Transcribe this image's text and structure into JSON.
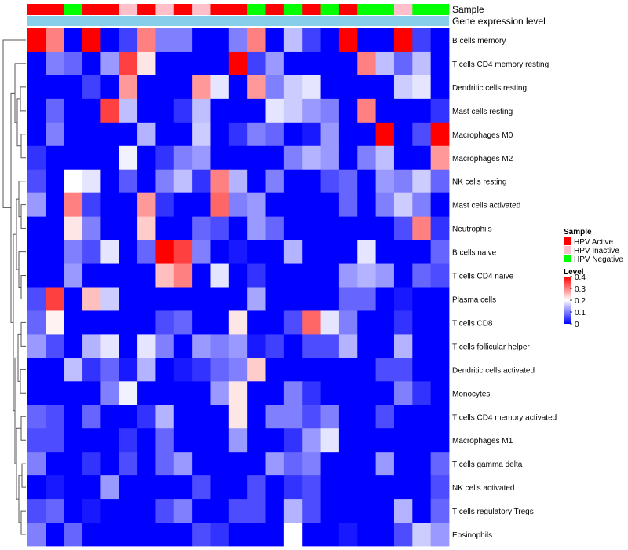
{
  "chart_data": {
    "type": "heatmap",
    "annotation_labels": {
      "sample": "Sample",
      "gene": "Gene expression level"
    },
    "legend": {
      "sample_title": "Sample",
      "sample_entries": [
        {
          "label": "HPV Active",
          "color": "#ff0000"
        },
        {
          "label": "HPV Inactive",
          "color": "#ffc0cb"
        },
        {
          "label": "HPV Negative",
          "color": "#00ff00"
        }
      ],
      "level_title": "Level",
      "level_ticks": [
        "0.4",
        "0.3",
        "0.2",
        "0.1",
        "0"
      ],
      "level_tick_values": [
        0.4,
        0.3,
        0.2,
        0.1,
        0
      ]
    },
    "color_scale": {
      "low": "#0000ff",
      "mid": "#ffffff",
      "high": "#ff0000",
      "min": 0,
      "mid_value": 0.2,
      "max": 0.4
    },
    "gene_bar_color": "#87ceeb",
    "sample_colors": [
      "#ff0000",
      "#ff0000",
      "#00ff00",
      "#ff0000",
      "#ff0000",
      "#ffc0cb",
      "#ff0000",
      "#ffc0cb",
      "#ff0000",
      "#ffc0cb",
      "#ff0000",
      "#ff0000",
      "#00ff00",
      "#ff0000",
      "#00ff00",
      "#ff0000",
      "#00ff00",
      "#ff0000",
      "#00ff00",
      "#00ff00",
      "#ffc0cb",
      "#00ff00",
      "#00ff00"
    ],
    "rows": [
      "B cells memory",
      "T cells CD4 memory resting",
      "Dendritic cells resting",
      "Mast cells resting",
      "Macrophages M0",
      "Macrophages M2",
      "NK cells resting",
      "Mast cells activated",
      "Neutrophils",
      "B cells naive",
      "T cells CD4 naive",
      "Plasma cells",
      "T cells CD8",
      "T cells follicular helper",
      "Dendritic cells activated",
      "Monocytes",
      "T cells CD4 memory activated",
      "Macrophages M1",
      "T cells gamma delta",
      "NK cells activated",
      "T cells regulatory  Tregs",
      "Eosinophils"
    ],
    "values": [
      [
        0.4,
        0.3,
        0.0,
        0.4,
        0.0,
        0.05,
        0.3,
        0.1,
        0.1,
        0.0,
        0.0,
        0.1,
        0.3,
        0.0,
        0.15,
        0.05,
        0.0,
        0.4,
        0.0,
        0.0,
        0.4,
        0.05,
        0.0
      ],
      [
        0.0,
        0.1,
        0.08,
        0.0,
        0.12,
        0.35,
        0.22,
        0.0,
        0.0,
        0.0,
        0.0,
        0.4,
        0.05,
        0.12,
        0.0,
        0.0,
        0.0,
        0.0,
        0.3,
        0.15,
        0.08,
        0.15,
        0.0
      ],
      [
        0.0,
        0.0,
        0.0,
        0.05,
        0.0,
        0.28,
        0.0,
        0.0,
        0.0,
        0.28,
        0.18,
        0.0,
        0.28,
        0.1,
        0.16,
        0.18,
        0.0,
        0.0,
        0.0,
        0.0,
        0.16,
        0.18,
        0.0
      ],
      [
        0.0,
        0.08,
        0.0,
        0.0,
        0.35,
        0.15,
        0.0,
        0.0,
        0.04,
        0.15,
        0.0,
        0.0,
        0.0,
        0.18,
        0.16,
        0.12,
        0.1,
        0.0,
        0.3,
        0.0,
        0.0,
        0.0,
        0.04
      ],
      [
        0.0,
        0.1,
        0.0,
        0.0,
        0.0,
        0.0,
        0.14,
        0.0,
        0.0,
        0.16,
        0.0,
        0.04,
        0.1,
        0.08,
        0.0,
        0.02,
        0.12,
        0.0,
        0.0,
        0.4,
        0.0,
        0.06,
        0.4
      ],
      [
        0.04,
        0.0,
        0.0,
        0.0,
        0.0,
        0.19,
        0.0,
        0.04,
        0.1,
        0.12,
        0.0,
        0.0,
        0.0,
        0.0,
        0.1,
        0.14,
        0.12,
        0.0,
        0.1,
        0.15,
        0.0,
        0.0,
        0.28
      ],
      [
        0.06,
        0.0,
        0.2,
        0.18,
        0.0,
        0.07,
        0.0,
        0.1,
        0.15,
        0.04,
        0.3,
        0.14,
        0.0,
        0.1,
        0.0,
        0.0,
        0.06,
        0.08,
        0.0,
        0.12,
        0.1,
        0.16,
        0.08
      ],
      [
        0.12,
        0.0,
        0.3,
        0.05,
        0.0,
        0.0,
        0.28,
        0.04,
        0.0,
        0.0,
        0.32,
        0.1,
        0.12,
        0.0,
        0.0,
        0.0,
        0.0,
        0.08,
        0.0,
        0.1,
        0.16,
        0.1,
        0.0
      ],
      [
        0.0,
        0.0,
        0.22,
        0.1,
        0.0,
        0.0,
        0.24,
        0.0,
        0.0,
        0.08,
        0.06,
        0.0,
        0.12,
        0.08,
        0.0,
        0.0,
        0.0,
        0.0,
        0.0,
        0.0,
        0.06,
        0.3,
        0.04
      ],
      [
        0.0,
        0.0,
        0.1,
        0.06,
        0.18,
        0.0,
        0.08,
        0.4,
        0.35,
        0.1,
        0.0,
        0.02,
        0.0,
        0.0,
        0.14,
        0.0,
        0.0,
        0.0,
        0.18,
        0.0,
        0.0,
        0.0,
        0.08
      ],
      [
        0.0,
        0.0,
        0.12,
        0.0,
        0.0,
        0.0,
        0.0,
        0.25,
        0.3,
        0.0,
        0.18,
        0.0,
        0.04,
        0.0,
        0.0,
        0.0,
        0.0,
        0.12,
        0.14,
        0.12,
        0.0,
        0.08,
        0.06
      ],
      [
        0.06,
        0.35,
        0.0,
        0.25,
        0.16,
        0.0,
        0.0,
        0.0,
        0.0,
        0.0,
        0.0,
        0.0,
        0.13,
        0.0,
        0.0,
        0.0,
        0.0,
        0.08,
        0.08,
        0.0,
        0.02,
        0.0,
        0.0
      ],
      [
        0.08,
        0.21,
        0.0,
        0.0,
        0.0,
        0.0,
        0.0,
        0.06,
        0.08,
        0.0,
        0.0,
        0.22,
        0.0,
        0.0,
        0.06,
        0.32,
        0.18,
        0.1,
        0.0,
        0.0,
        0.04,
        0.0,
        0.0
      ],
      [
        0.12,
        0.06,
        0.0,
        0.14,
        0.18,
        0.0,
        0.18,
        0.1,
        0.0,
        0.12,
        0.1,
        0.12,
        0.02,
        0.05,
        0.0,
        0.06,
        0.06,
        0.14,
        0.0,
        0.0,
        0.14,
        0.0,
        0.0
      ],
      [
        0.0,
        0.0,
        0.15,
        0.04,
        0.08,
        0.02,
        0.14,
        0.0,
        0.02,
        0.04,
        0.08,
        0.1,
        0.24,
        0.0,
        0.0,
        0.0,
        0.0,
        0.0,
        0.0,
        0.06,
        0.06,
        0.0,
        0.0
      ],
      [
        0.0,
        0.0,
        0.0,
        0.0,
        0.1,
        0.19,
        0.0,
        0.0,
        0.0,
        0.0,
        0.12,
        0.22,
        0.0,
        0.0,
        0.1,
        0.04,
        0.0,
        0.0,
        0.0,
        0.0,
        0.1,
        0.04,
        0.0
      ],
      [
        0.08,
        0.06,
        0.0,
        0.08,
        0.0,
        0.0,
        0.04,
        0.14,
        0.0,
        0.0,
        0.0,
        0.22,
        0.0,
        0.1,
        0.1,
        0.06,
        0.1,
        0.0,
        0.0,
        0.06,
        0.0,
        0.0,
        0.0
      ],
      [
        0.06,
        0.06,
        0.0,
        0.0,
        0.0,
        0.04,
        0.0,
        0.08,
        0.0,
        0.0,
        0.0,
        0.12,
        0.0,
        0.0,
        0.04,
        0.12,
        0.18,
        0.0,
        0.0,
        0.0,
        0.0,
        0.0,
        0.0
      ],
      [
        0.1,
        0.0,
        0.0,
        0.04,
        0.0,
        0.06,
        0.0,
        0.08,
        0.12,
        0.0,
        0.0,
        0.0,
        0.0,
        0.12,
        0.08,
        0.1,
        0.0,
        0.0,
        0.0,
        0.12,
        0.0,
        0.0,
        0.08
      ],
      [
        0.0,
        0.02,
        0.0,
        0.0,
        0.12,
        0.0,
        0.0,
        0.0,
        0.0,
        0.06,
        0.0,
        0.0,
        0.06,
        0.0,
        0.04,
        0.06,
        0.0,
        0.0,
        0.0,
        0.0,
        0.0,
        0.0,
        0.06
      ],
      [
        0.06,
        0.08,
        0.0,
        0.02,
        0.0,
        0.0,
        0.0,
        0.06,
        0.1,
        0.0,
        0.0,
        0.06,
        0.06,
        0.0,
        0.14,
        0.06,
        0.0,
        0.0,
        0.0,
        0.0,
        0.14,
        0.0,
        0.08
      ],
      [
        0.1,
        0.0,
        0.08,
        0.0,
        0.0,
        0.0,
        0.0,
        0.0,
        0.0,
        0.06,
        0.04,
        0.0,
        0.0,
        0.0,
        0.2,
        0.0,
        0.0,
        0.02,
        0.0,
        0.0,
        0.06,
        0.16,
        0.12
      ]
    ]
  }
}
